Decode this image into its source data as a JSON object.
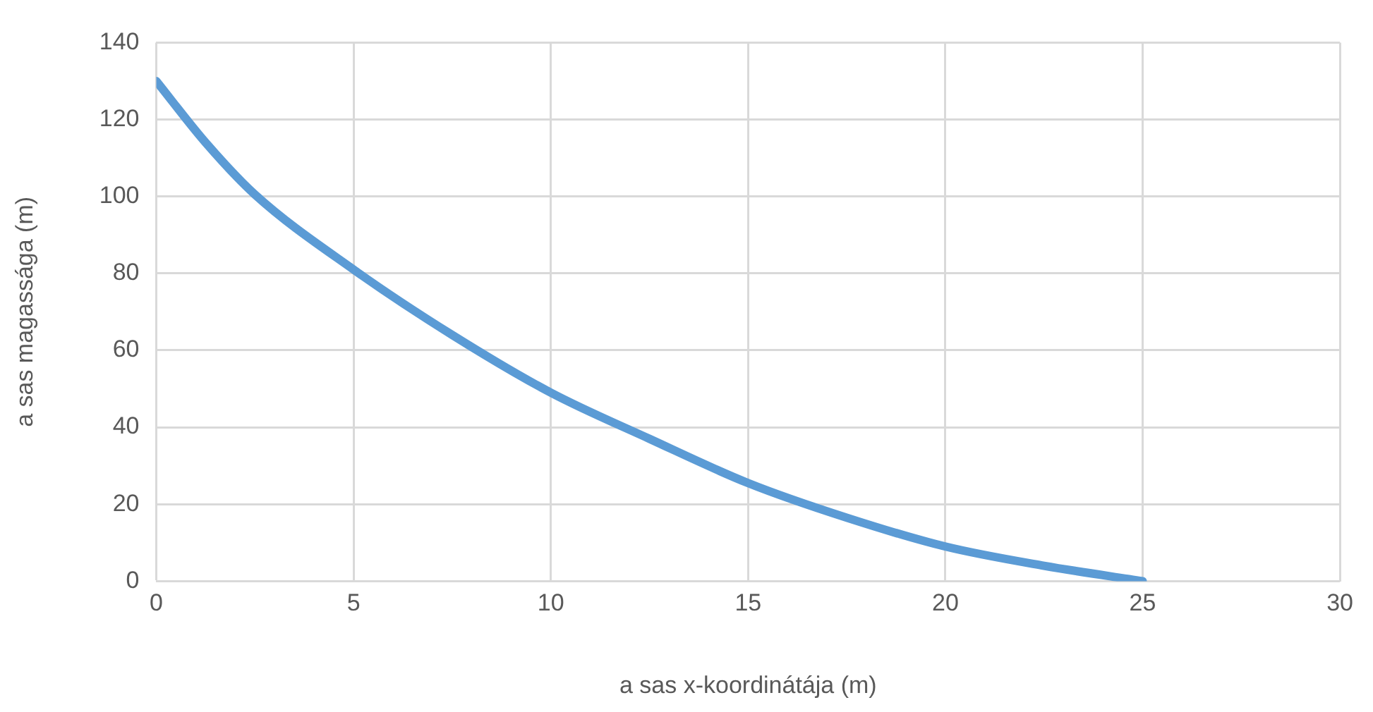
{
  "chart_data": {
    "type": "line",
    "xlabel": "a sas x-koordinátája (m)",
    "ylabel": "a sas magassága (m)",
    "x": [
      0,
      1.25,
      2.5,
      5,
      7.5,
      10,
      12.5,
      15,
      17.5,
      20,
      22.5,
      25
    ],
    "series": [
      {
        "color": "#5b9bd5",
        "values": [
          130,
          114,
          100.5,
          81,
          64,
          49,
          37,
          25.5,
          16.5,
          9,
          4,
          0
        ]
      }
    ],
    "xlim": [
      0,
      30
    ],
    "xticks": [
      0,
      5,
      10,
      15,
      20,
      25,
      30
    ],
    "ylim": [
      0,
      140
    ],
    "yticks": [
      0,
      20,
      40,
      60,
      80,
      100,
      120,
      140
    ],
    "grid": true,
    "legend": false,
    "marker": "none",
    "line_style": "solid"
  }
}
